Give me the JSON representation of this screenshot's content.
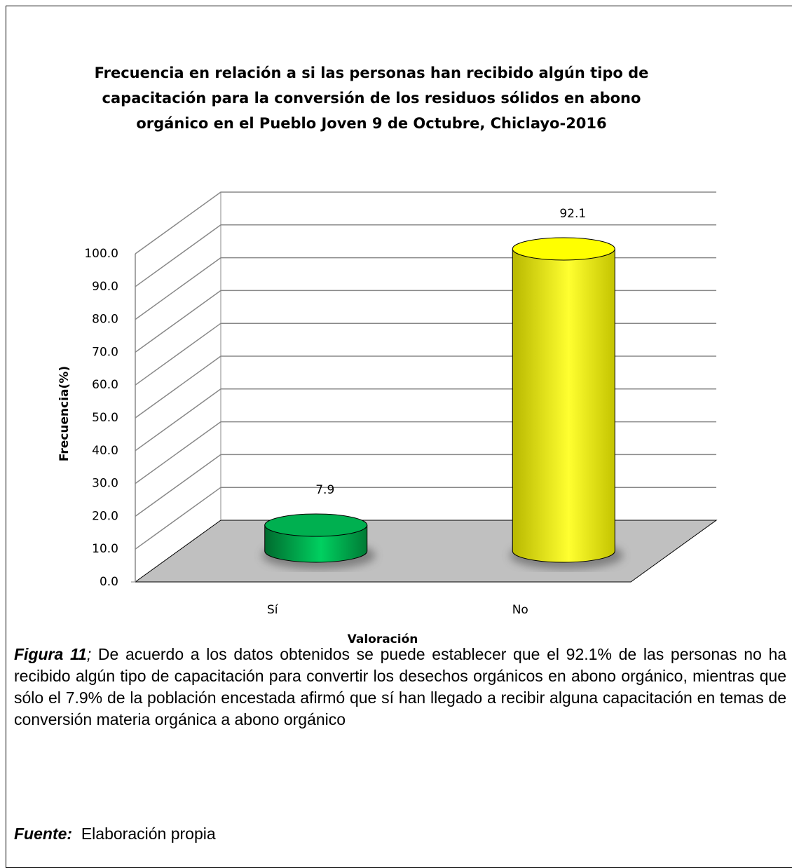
{
  "chart_data": {
    "type": "bar",
    "title": "Frecuencia en relación a si las personas han recibido algún tipo de capacitación para la conversión de los residuos sólidos en abono orgánico en el Pueblo Joven 9 de Octubre, Chiclayo-2016",
    "categories": [
      "Sí",
      "No"
    ],
    "values": [
      7.9,
      92.1
    ],
    "colors": [
      "#00b050",
      "#ffff00"
    ],
    "ylabel": "Frecuencia(%)",
    "xlabel": "Valoración",
    "ylim": [
      0,
      100
    ],
    "yticks": [
      {
        "value": 0,
        "label": "0.0"
      },
      {
        "value": 10,
        "label": "10.0"
      },
      {
        "value": 20,
        "label": "20.0"
      },
      {
        "value": 30,
        "label": "30.0"
      },
      {
        "value": 40,
        "label": "40.0"
      },
      {
        "value": 50,
        "label": "50.0"
      },
      {
        "value": 60,
        "label": "60.0"
      },
      {
        "value": 70,
        "label": "70.0"
      },
      {
        "value": 80,
        "label": "80.0"
      },
      {
        "value": 90,
        "label": "90.0"
      },
      {
        "value": 100,
        "label": "100.0"
      }
    ],
    "grid": true
  },
  "caption": {
    "label": "Figura 11",
    "separator": ";",
    "text": "De acuerdo a los datos obtenidos se puede establecer que el 92.1% de las personas no ha recibido algún tipo de capacitación para convertir los desechos orgánicos en abono orgánico, mientras que sólo el 7.9% de la población encestada afirmó que sí han llegado a recibir alguna capacitación en temas de conversión materia orgánica a abono orgánico"
  },
  "source": {
    "label": "Fuente:",
    "text": "Elaboración propia"
  }
}
